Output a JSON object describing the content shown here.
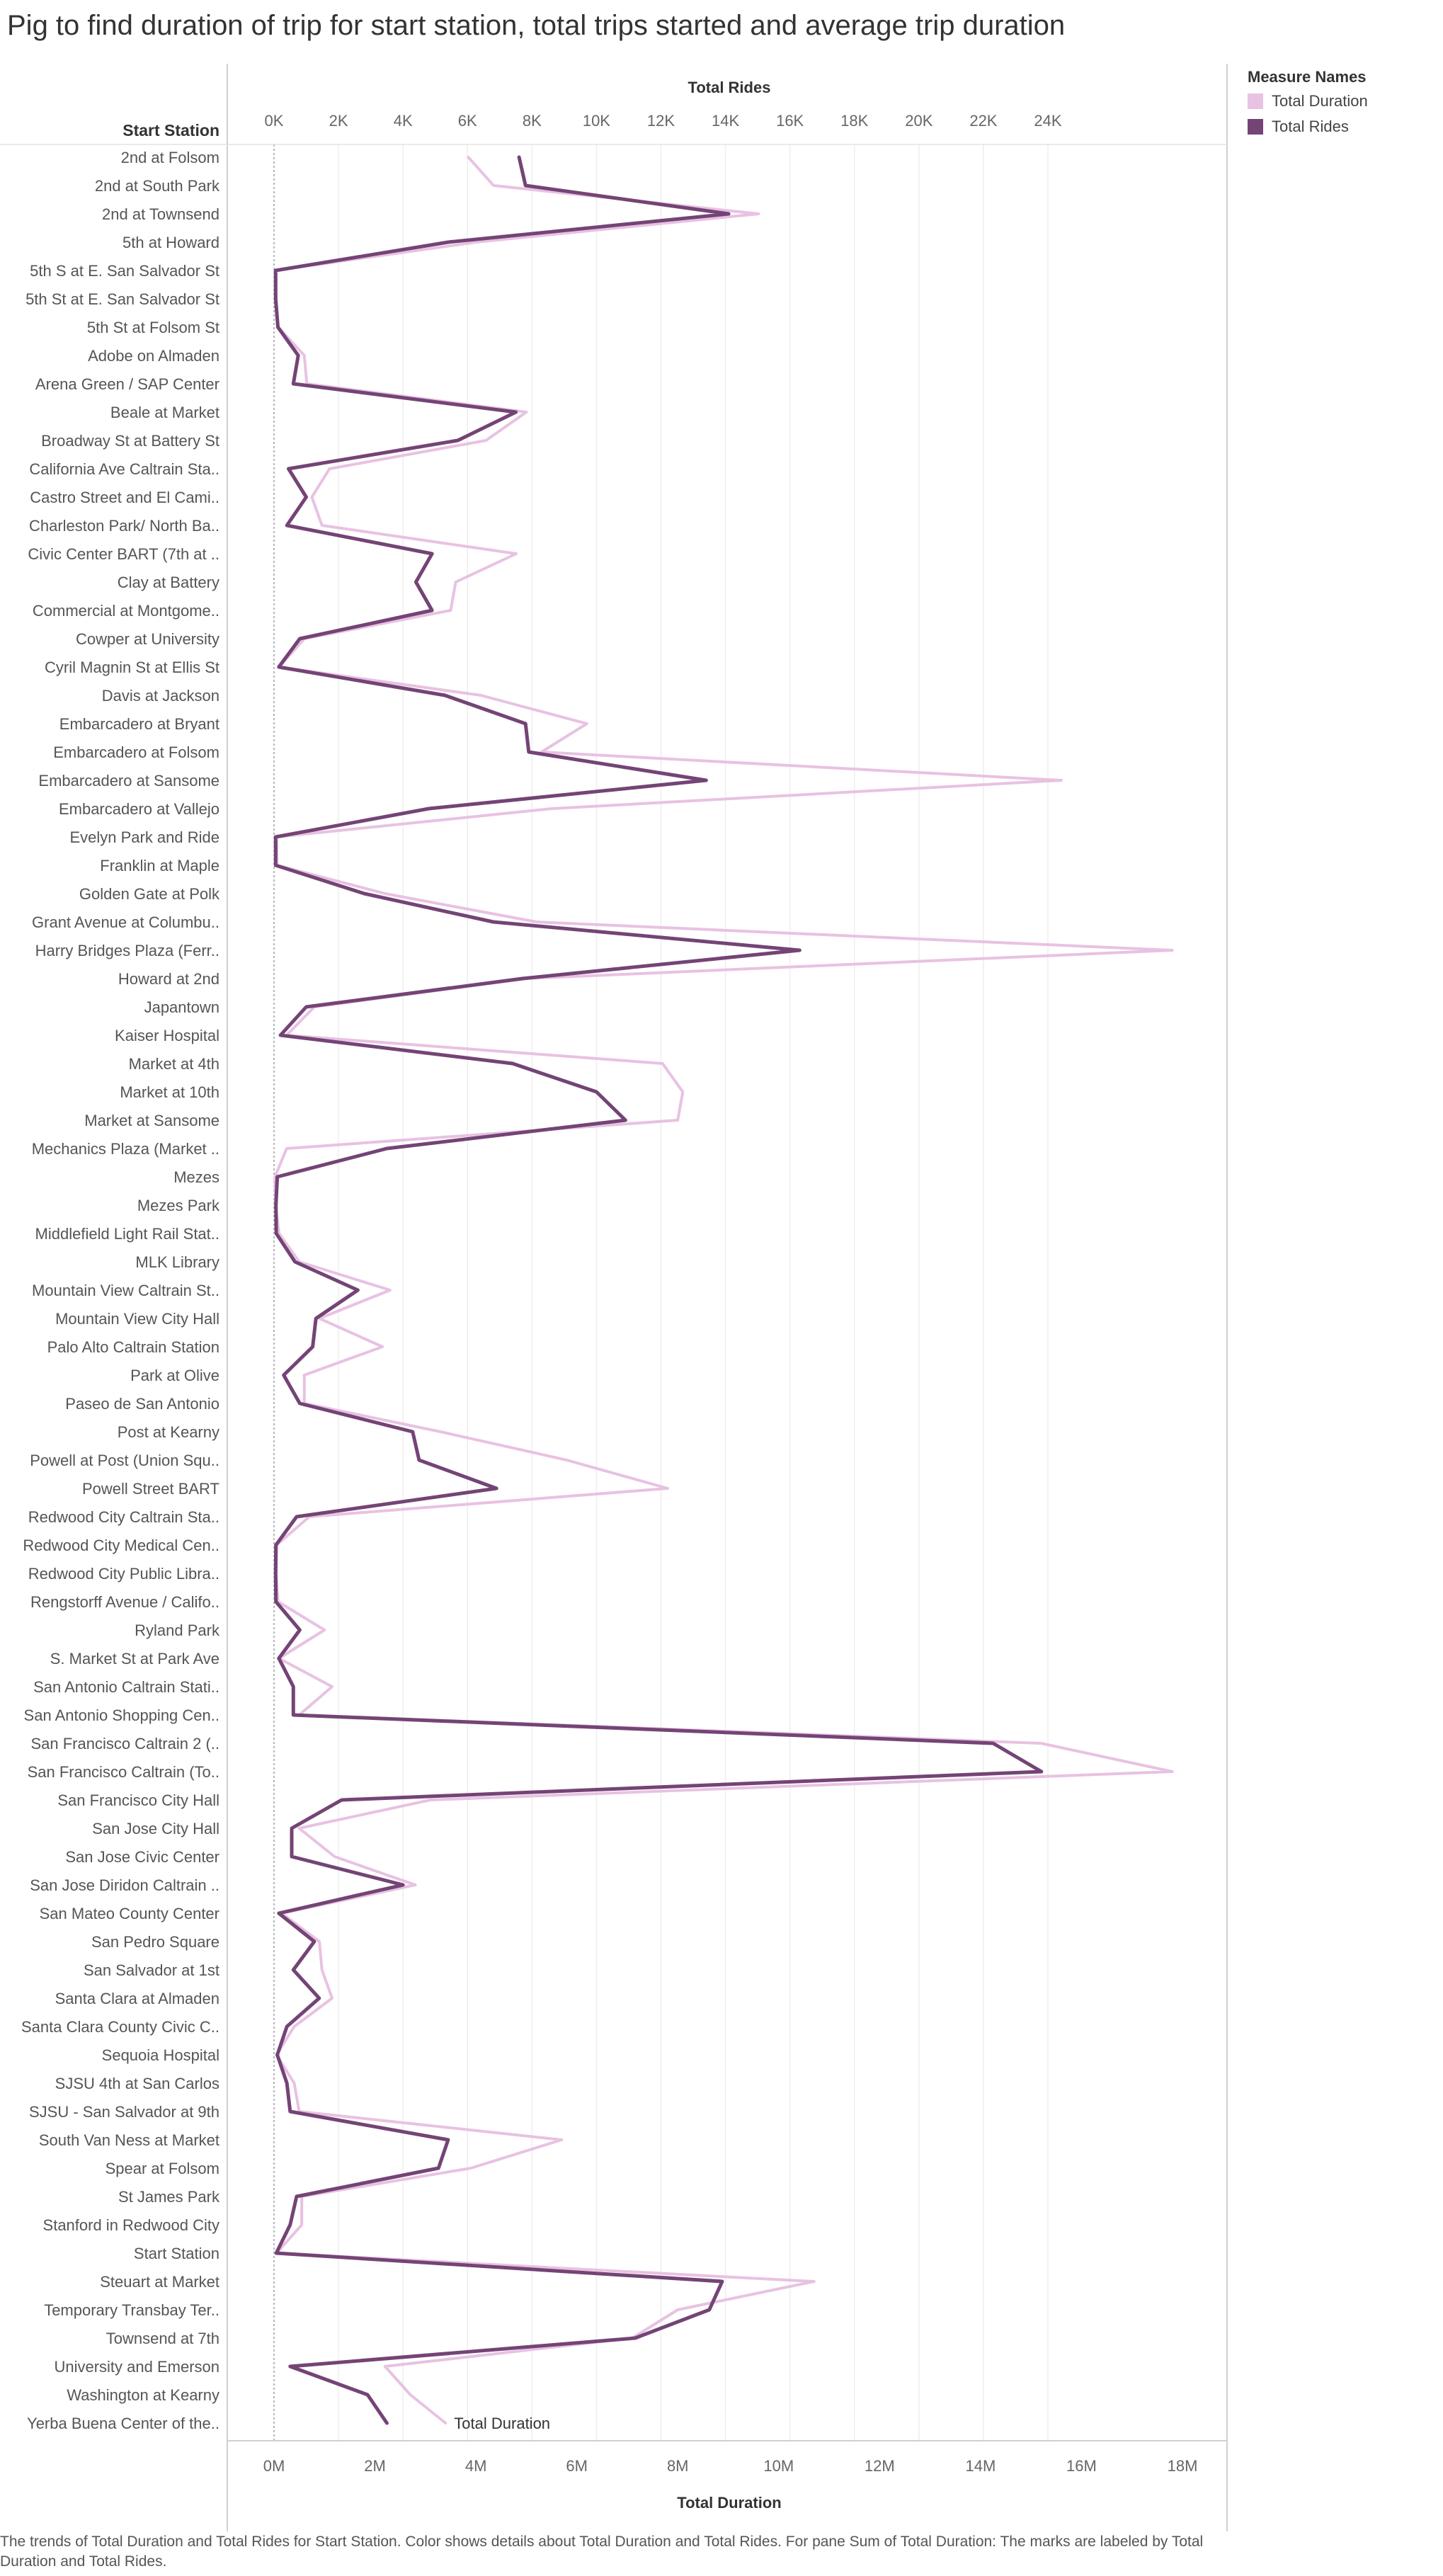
{
  "page": {
    "title": "Pig to find duration of trip for start station, total trips started and average trip duration",
    "caption": "The trends of Total Duration and Total Rides for Start Station.  Color shows details about Total Duration and Total Rides.  For pane Sum of Total Duration: The marks are labeled by Total Duration and Total Rides."
  },
  "legend": {
    "title": "Measure Names",
    "items": [
      {
        "label": "Total Duration",
        "color": "#e8c2e2"
      },
      {
        "label": "Total Rides",
        "color": "#744476"
      }
    ]
  },
  "chart_data": {
    "type": "line",
    "orientation": "vertical-categories",
    "row_header": "Start Station",
    "top_axis": {
      "title": "Total Rides",
      "ticks": [
        "0K",
        "2K",
        "4K",
        "6K",
        "8K",
        "10K",
        "12K",
        "14K",
        "16K",
        "18K",
        "20K",
        "22K",
        "24K"
      ],
      "range": [
        0,
        24000
      ]
    },
    "bottom_axis": {
      "title": "Total Duration",
      "ticks": [
        "0M",
        "2M",
        "4M",
        "6M",
        "8M",
        "10M",
        "12M",
        "14M",
        "16M",
        "18M"
      ],
      "range": [
        0,
        18000000
      ]
    },
    "end_label": "Total Duration",
    "categories": [
      "2nd at Folsom",
      "2nd at South Park",
      "2nd at Townsend",
      "5th at Howard",
      "5th S at E. San Salvador St",
      "5th St at E. San Salvador St",
      "5th St at Folsom St",
      "Adobe on Almaden",
      "Arena Green / SAP Center",
      "Beale at Market",
      "Broadway St at Battery St",
      "California Ave Caltrain Sta..",
      "Castro Street and El Cami..",
      "Charleston Park/ North Ba..",
      "Civic Center BART (7th at ..",
      "Clay at Battery",
      "Commercial at Montgome..",
      "Cowper at University",
      "Cyril Magnin St at Ellis St",
      "Davis at Jackson",
      "Embarcadero at Bryant",
      "Embarcadero at Folsom",
      "Embarcadero at Sansome",
      "Embarcadero at Vallejo",
      "Evelyn Park and Ride",
      "Franklin at Maple",
      "Golden Gate at Polk",
      "Grant Avenue at Columbu..",
      "Harry Bridges Plaza (Ferr..",
      "Howard at 2nd",
      "Japantown",
      "Kaiser Hospital",
      "Market at 4th",
      "Market at 10th",
      "Market at Sansome",
      "Mechanics Plaza (Market ..",
      "Mezes",
      "Mezes Park",
      "Middlefield Light Rail Stat..",
      "MLK Library",
      "Mountain View Caltrain St..",
      "Mountain View City Hall",
      "Palo Alto Caltrain Station",
      "Park at Olive",
      "Paseo de San Antonio",
      "Post at Kearny",
      "Powell at Post (Union Squ..",
      "Powell Street BART",
      "Redwood City Caltrain Sta..",
      "Redwood City Medical Cen..",
      "Redwood City Public Libra..",
      "Rengstorff Avenue / Califo..",
      "Ryland Park",
      "S. Market St at Park Ave",
      "San Antonio Caltrain Stati..",
      "San Antonio Shopping Cen..",
      "San Francisco Caltrain 2 (..",
      "San Francisco Caltrain (To..",
      "San Francisco City Hall",
      "San Jose City Hall",
      "San Jose Civic Center",
      "San Jose Diridon Caltrain ..",
      "San Mateo County Center",
      "San Pedro Square",
      "San Salvador at 1st",
      "Santa Clara at Almaden",
      "Santa Clara County Civic C..",
      "Sequoia Hospital",
      "SJSU 4th at San Carlos",
      "SJSU - San Salvador at 9th",
      "South Van Ness at Market",
      "Spear at Folsom",
      "St James Park",
      "Stanford in Redwood City",
      "Start Station",
      "Steuart at Market",
      "Temporary Transbay Ter..",
      "Townsend at 7th",
      "University and Emerson",
      "Washington at Kearny",
      "Yerba Buena Center of the.."
    ],
    "series": [
      {
        "name": "Total Duration",
        "axis": "bottom",
        "color": "#e8c2e2",
        "values": [
          3850000,
          4350000,
          9600000,
          4000000,
          20000,
          40000,
          80000,
          600000,
          650000,
          5000000,
          4200000,
          1100000,
          750000,
          950000,
          4800000,
          3600000,
          3500000,
          600000,
          100000,
          4100000,
          6200000,
          5300000,
          15600000,
          5500000,
          50000,
          60000,
          2200000,
          5200000,
          17800000,
          5000000,
          800000,
          250000,
          7700000,
          8100000,
          8000000,
          250000,
          20000,
          30000,
          100000,
          500000,
          2300000,
          900000,
          2150000,
          600000,
          600000,
          3300000,
          5800000,
          7800000,
          700000,
          50000,
          40000,
          80000,
          1000000,
          100000,
          1150000,
          500000,
          15200000,
          17800000,
          3100000,
          500000,
          1200000,
          2800000,
          150000,
          900000,
          950000,
          1150000,
          400000,
          50000,
          400000,
          500000,
          5700000,
          3900000,
          550000,
          550000,
          50000,
          10700000,
          8000000,
          7100000,
          2200000,
          2700000,
          3400000
        ]
      },
      {
        "name": "Total Rides",
        "axis": "top",
        "color": "#744476",
        "values": [
          7600,
          7800,
          14100,
          5400,
          50,
          50,
          120,
          750,
          600,
          7500,
          5700,
          450,
          1000,
          400,
          4900,
          4400,
          4900,
          800,
          150,
          5300,
          7800,
          7900,
          13400,
          4800,
          50,
          50,
          2800,
          6800,
          16300,
          7700,
          1000,
          200,
          7400,
          10000,
          10900,
          3500,
          100,
          60,
          70,
          650,
          2600,
          1300,
          1200,
          300,
          800,
          4300,
          4500,
          6900,
          700,
          60,
          50,
          60,
          800,
          150,
          600,
          600,
          22300,
          23800,
          2100,
          550,
          550,
          4000,
          150,
          1250,
          600,
          1400,
          400,
          100,
          400,
          500,
          5400,
          5100,
          700,
          500,
          70,
          13900,
          13500,
          11200,
          500,
          2900,
          3500
        ]
      }
    ]
  }
}
